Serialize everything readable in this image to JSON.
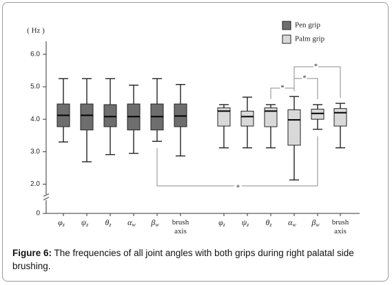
{
  "chart_data": {
    "type": "box",
    "y_axis_label": "( Hz )",
    "ylim": [
      0,
      6.4
    ],
    "y_break": [
      0.5,
      1.6
    ],
    "yticks": [
      {
        "value": 0,
        "label": "0"
      },
      {
        "value": 2,
        "label": "2.0"
      },
      {
        "value": 3,
        "label": "3.0"
      },
      {
        "value": 4,
        "label": "4.0"
      },
      {
        "value": 5,
        "label": "5.0"
      },
      {
        "value": 6,
        "label": "6.0"
      }
    ],
    "categories": [
      {
        "symbol": "φ",
        "sub": "z"
      },
      {
        "symbol": "ψ",
        "sub": "z"
      },
      {
        "symbol": "θ",
        "sub": "z"
      },
      {
        "symbol": "α",
        "sub": "w"
      },
      {
        "symbol": "β",
        "sub": "w"
      },
      {
        "lines": [
          "brush",
          "axis"
        ]
      }
    ],
    "legend": "top-right",
    "series": [
      {
        "name": "Pen grip",
        "color": "#6e6e6e",
        "values": [
          {
            "min": 3.3,
            "q1": 3.77,
            "median": 4.12,
            "q3": 4.47,
            "max": 5.25
          },
          {
            "min": 2.69,
            "q1": 3.67,
            "median": 4.12,
            "q3": 4.47,
            "max": 5.25
          },
          {
            "min": 2.91,
            "q1": 3.77,
            "median": 4.08,
            "q3": 4.45,
            "max": 5.25
          },
          {
            "min": 2.95,
            "q1": 3.67,
            "median": 4.08,
            "q3": 4.47,
            "max": 5.05
          },
          {
            "min": 3.32,
            "q1": 3.67,
            "median": 4.08,
            "q3": 4.47,
            "max": 5.25
          },
          {
            "min": 2.87,
            "q1": 3.77,
            "median": 4.1,
            "q3": 4.47,
            "max": 5.07
          }
        ]
      },
      {
        "name": "Palm grip",
        "color": "#d9d9d9",
        "values": [
          {
            "min": 3.12,
            "q1": 3.79,
            "median": 4.25,
            "q3": 4.35,
            "max": 4.45
          },
          {
            "min": 3.12,
            "q1": 3.79,
            "median": 4.08,
            "q3": 4.25,
            "max": 4.68
          },
          {
            "min": 3.12,
            "q1": 3.77,
            "median": 4.25,
            "q3": 4.35,
            "max": 4.45
          },
          {
            "min": 2.13,
            "q1": 3.2,
            "median": 3.98,
            "q3": 4.29,
            "max": 4.7
          },
          {
            "min": 3.69,
            "q1": 4.0,
            "median": 4.18,
            "q3": 4.31,
            "max": 4.45
          },
          {
            "min": 3.12,
            "q1": 3.79,
            "median": 4.2,
            "q3": 4.33,
            "max": 4.49
          }
        ]
      }
    ],
    "annotations": [
      {
        "text": "*",
        "between": [
          [
            0,
            4
          ],
          [
            1,
            4
          ]
        ]
      },
      {
        "text": "*",
        "between": [
          [
            1,
            2
          ],
          [
            1,
            3
          ]
        ]
      },
      {
        "text": "*",
        "between": [
          [
            1,
            3
          ],
          [
            1,
            4
          ]
        ]
      },
      {
        "text": "*",
        "between": [
          [
            1,
            3
          ],
          [
            1,
            5
          ]
        ]
      }
    ]
  },
  "caption": {
    "label": "Figure 6:",
    "text": " The frequencies of all joint angles with both grips during right palatal side brushing."
  }
}
